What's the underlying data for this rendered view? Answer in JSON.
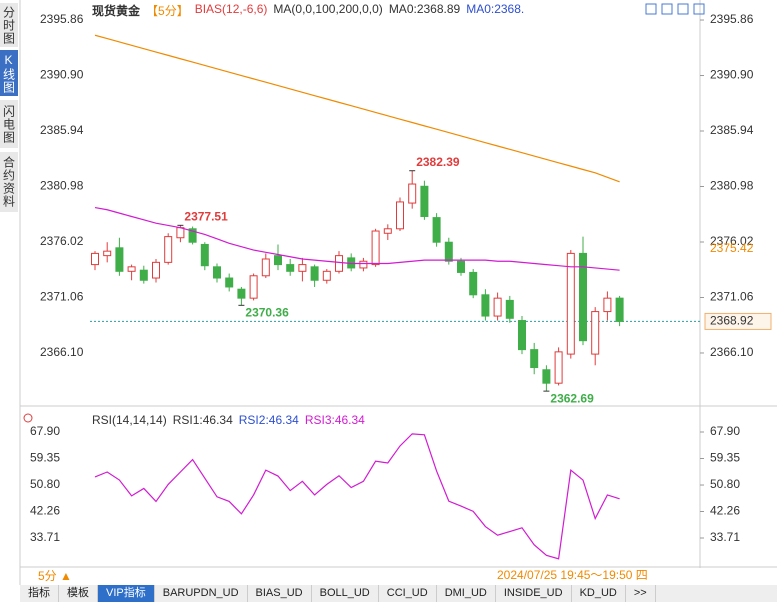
{
  "ui": {
    "sidebar": [
      "分时图",
      "K线图",
      "闪电图",
      "合约资料"
    ],
    "period_switch": "5分 ▲",
    "time_range": "2024/07/25 19:45～19:50 四",
    "tabs": [
      "指标",
      "模板",
      "VIP指标",
      "BARUPDN_UD",
      "BIAS_UD",
      "BOLL_UD",
      "CCI_UD",
      "DMI_UD",
      "INSIDE_UD",
      "KD_UD",
      ">>"
    ]
  },
  "chart_data": [
    {
      "type": "candlestick",
      "title": "现货黄金",
      "period": "【5分】",
      "indicators": [
        "BIAS(12,-6,6)",
        "MA(0,0,100,200,0,0)",
        "MA0:2368.89",
        "MA0:2368."
      ],
      "up_color": "#e03c3c",
      "down_color": "#3fae49",
      "ohlc": [
        [
          2374.0,
          2375.2,
          2373.5,
          2375.0
        ],
        [
          2374.8,
          2376.0,
          2374.2,
          2375.2
        ],
        [
          2375.5,
          2376.4,
          2373.0,
          2373.4
        ],
        [
          2373.4,
          2374.0,
          2372.6,
          2373.8
        ],
        [
          2373.5,
          2373.9,
          2372.3,
          2372.6
        ],
        [
          2372.8,
          2374.5,
          2372.4,
          2374.2
        ],
        [
          2374.2,
          2376.8,
          2374.0,
          2376.5
        ],
        [
          2376.4,
          2377.51,
          2376.0,
          2377.3
        ],
        [
          2377.2,
          2377.4,
          2375.8,
          2376.0
        ],
        [
          2375.8,
          2376.0,
          2373.5,
          2373.9
        ],
        [
          2373.8,
          2374.1,
          2372.4,
          2372.8
        ],
        [
          2372.8,
          2373.2,
          2371.6,
          2372.0
        ],
        [
          2371.8,
          2372.0,
          2370.36,
          2371.0
        ],
        [
          2371.0,
          2373.2,
          2370.8,
          2373.0
        ],
        [
          2373.0,
          2375.0,
          2372.8,
          2374.5
        ],
        [
          2374.8,
          2375.8,
          2373.5,
          2374.0
        ],
        [
          2374.0,
          2374.5,
          2373.0,
          2373.4
        ],
        [
          2373.4,
          2374.6,
          2372.5,
          2374.0
        ],
        [
          2373.8,
          2374.0,
          2372.0,
          2372.6
        ],
        [
          2372.6,
          2373.6,
          2372.3,
          2373.4
        ],
        [
          2373.4,
          2375.2,
          2373.2,
          2374.8
        ],
        [
          2374.6,
          2375.0,
          2373.4,
          2373.7
        ],
        [
          2373.7,
          2374.6,
          2373.4,
          2374.3
        ],
        [
          2374.0,
          2377.2,
          2373.8,
          2377.0
        ],
        [
          2376.8,
          2377.6,
          2376.2,
          2377.2
        ],
        [
          2377.2,
          2380.0,
          2377.0,
          2379.6
        ],
        [
          2379.5,
          2382.39,
          2379.0,
          2381.2
        ],
        [
          2381.0,
          2381.5,
          2378.0,
          2378.3
        ],
        [
          2378.2,
          2378.6,
          2375.6,
          2376.0
        ],
        [
          2376.0,
          2376.4,
          2374.0,
          2374.3
        ],
        [
          2374.3,
          2374.6,
          2373.0,
          2373.3
        ],
        [
          2373.3,
          2373.6,
          2371.0,
          2371.3
        ],
        [
          2371.3,
          2371.8,
          2369.0,
          2369.4
        ],
        [
          2369.4,
          2371.5,
          2369.0,
          2371.0
        ],
        [
          2370.8,
          2371.2,
          2368.8,
          2369.2
        ],
        [
          2369.0,
          2369.4,
          2366.0,
          2366.4
        ],
        [
          2366.4,
          2367.0,
          2364.2,
          2364.8
        ],
        [
          2364.6,
          2365.0,
          2362.69,
          2363.4
        ],
        [
          2363.4,
          2366.6,
          2363.2,
          2366.2
        ],
        [
          2366.0,
          2375.3,
          2365.6,
          2375.0
        ],
        [
          2375.0,
          2376.5,
          2366.8,
          2367.2
        ],
        [
          2366.0,
          2370.2,
          2365.0,
          2369.8
        ],
        [
          2369.8,
          2371.6,
          2369.0,
          2371.0
        ],
        [
          2371.0,
          2371.2,
          2368.5,
          2368.92
        ]
      ],
      "series": [
        {
          "color": "#f08a00",
          "values": [
            2394.5,
            2394.2,
            2393.9,
            2393.6,
            2393.3,
            2393.0,
            2392.7,
            2392.4,
            2392.1,
            2391.8,
            2391.5,
            2391.2,
            2390.9,
            2390.6,
            2390.3,
            2390.0,
            2389.7,
            2389.4,
            2389.1,
            2388.8,
            2388.5,
            2388.2,
            2387.9,
            2387.6,
            2387.3,
            2387.0,
            2386.7,
            2386.4,
            2386.1,
            2385.8,
            2385.5,
            2385.2,
            2384.9,
            2384.6,
            2384.3,
            2384.0,
            2383.7,
            2383.4,
            2383.1,
            2382.8,
            2382.5,
            2382.2,
            2381.8,
            2381.4
          ]
        },
        {
          "color": "#d21bd2",
          "values": [
            2379.1,
            2378.9,
            2378.6,
            2378.3,
            2378.0,
            2377.7,
            2377.5,
            2377.3,
            2377.0,
            2376.7,
            2376.3,
            2375.9,
            2375.6,
            2375.3,
            2375.1,
            2374.9,
            2374.7,
            2374.5,
            2374.4,
            2374.3,
            2374.2,
            2374.1,
            2374.1,
            2374.1,
            2374.1,
            2374.2,
            2374.3,
            2374.4,
            2374.4,
            2374.4,
            2374.4,
            2374.4,
            2374.4,
            2374.3,
            2374.3,
            2374.2,
            2374.1,
            2374.0,
            2373.9,
            2373.8,
            2373.8,
            2373.7,
            2373.6,
            2373.5
          ]
        }
      ],
      "annotations": [
        2377.51,
        2370.36,
        2382.39,
        2362.69
      ],
      "ma_marker": 2375.42,
      "last_price": 2368.92,
      "last_price_color": "#2a9d9d",
      "ylim": [
        2361.45,
        2397.65
      ],
      "yticks": [
        2395.86,
        {
          "value": 2390.9,
          "label": "2390.90"
        },
        2385.94,
        2380.98,
        2376.02,
        2371.06,
        {
          "value": 2366.1,
          "label": "2366.10"
        }
      ],
      "grid": false
    },
    {
      "type": "line",
      "title": "RSI(14,14,14)",
      "indicators": [
        "RSI1:46.34",
        "RSI2:46.34",
        "RSI3:46.34"
      ],
      "series": [
        {
          "color": "#d21bd2",
          "values": [
            53.4,
            55.0,
            52.4,
            47.3,
            49.7,
            45.5,
            51.0,
            55.0,
            59.0,
            53.0,
            47.0,
            45.5,
            41.5,
            47.6,
            55.6,
            53.7,
            49.0,
            52.0,
            47.6,
            51.0,
            53.8,
            50.0,
            52.0,
            58.5,
            57.9,
            63.4,
            67.3,
            67.0,
            55.3,
            45.6,
            44.0,
            42.3,
            37.4,
            34.6,
            35.8,
            37.0,
            31.5,
            28.1,
            27.0,
            55.6,
            52.4,
            40.0,
            47.6,
            46.34
          ]
        }
      ],
      "ylim": [
        25,
        75
      ],
      "yticks": [
        {
          "value": 67.9,
          "label": "67.90"
        },
        59.35,
        {
          "value": 50.8,
          "label": "50.80"
        },
        42.26,
        33.71
      ],
      "grid": false
    }
  ]
}
